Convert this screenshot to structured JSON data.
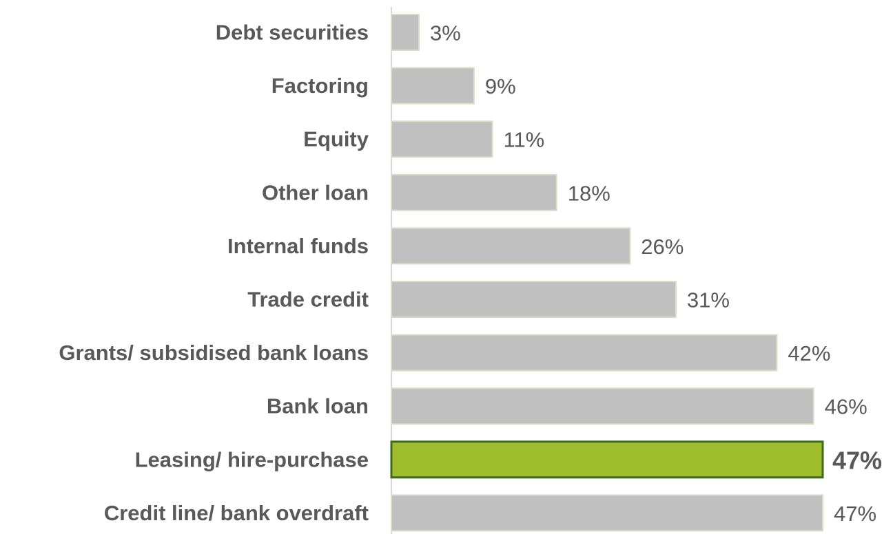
{
  "chart_data": {
    "type": "bar",
    "orientation": "horizontal",
    "title": "",
    "xlabel": "",
    "ylabel": "",
    "xlim": [
      0,
      47
    ],
    "grid": false,
    "legend": "none",
    "categories": [
      "Debt securities",
      "Factoring",
      "Equity",
      "Other loan",
      "Internal funds",
      "Trade credit",
      "Grants/ subsidised bank loans",
      "Bank loan",
      "Leasing/ hire-purchase",
      "Credit line/ bank overdraft"
    ],
    "values": [
      3,
      9,
      11,
      18,
      26,
      31,
      42,
      46,
      47,
      47
    ],
    "labels": [
      "3%",
      "9%",
      "11%",
      "18%",
      "26%",
      "31%",
      "42%",
      "46%",
      "47%",
      "47%"
    ],
    "highlight_index": 8,
    "colors": {
      "bar": "#c0c0c0",
      "bar_border": "#dcdcc8",
      "highlight": "#a0bd2e",
      "highlight_border": "#3f6a1e",
      "highlight_label": "#9dbd2b",
      "text": "#595959",
      "axis": "#d9d9d9"
    }
  }
}
